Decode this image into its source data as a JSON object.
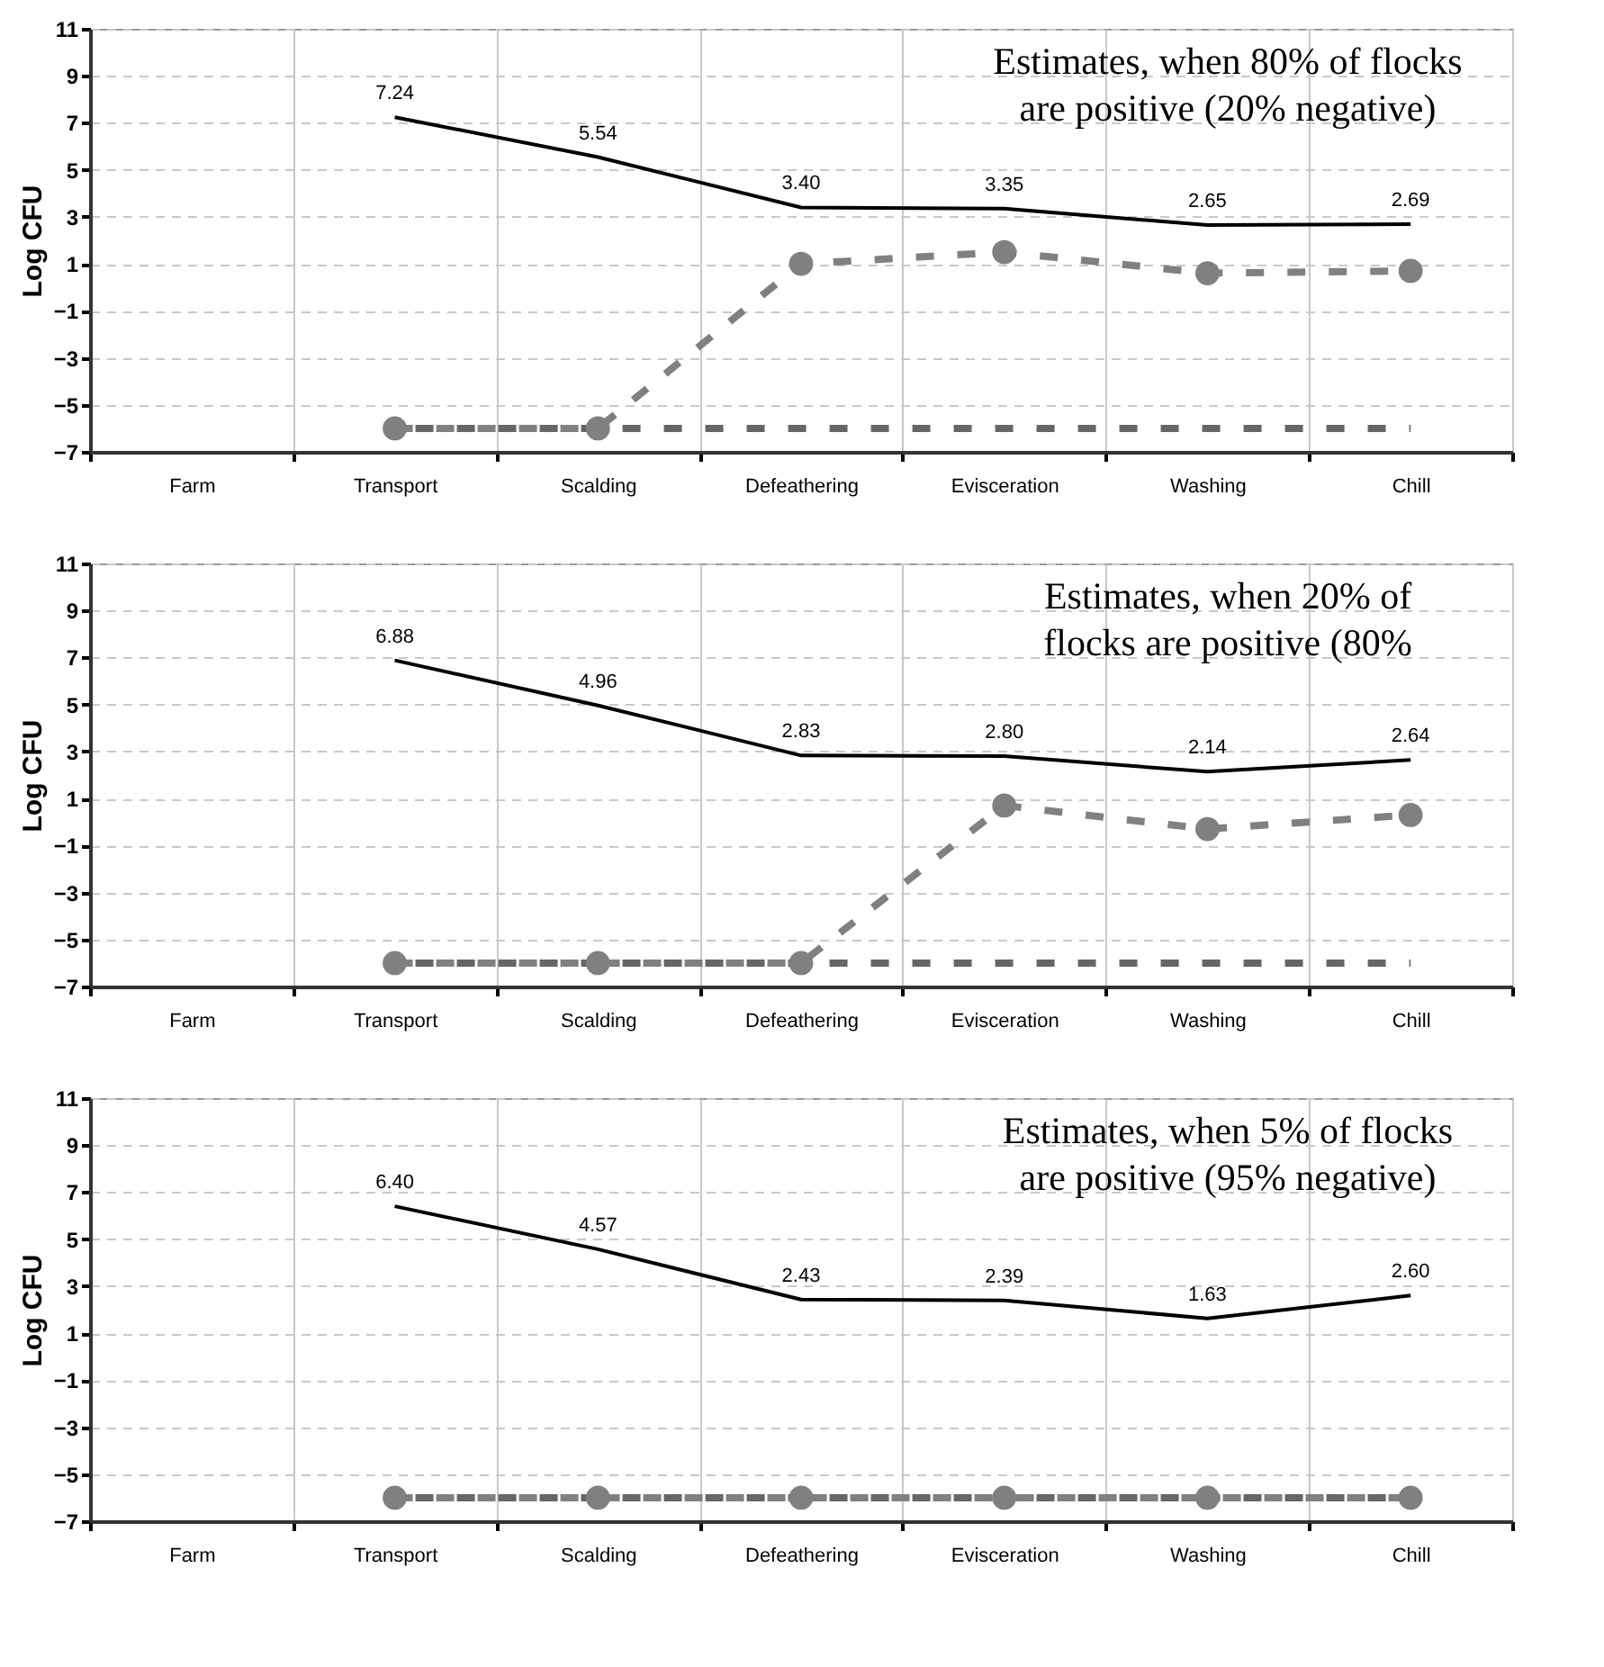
{
  "chart_data": [
    {
      "type": "line",
      "title": "Estimates, when 80% of flocks\nare positive (20% negative)",
      "ylabel": "Log CFU",
      "categories": [
        "Farm",
        "Transport",
        "Scalding",
        "Defeathering",
        "Evisceration",
        "Washing",
        "Chill"
      ],
      "ylim": [
        -7,
        11
      ],
      "yticks": [
        -7,
        -5,
        -3,
        -1,
        1,
        3,
        5,
        7,
        9,
        11
      ],
      "grid": true,
      "series": [
        {
          "color": "#000000",
          "line_style": "solid",
          "marker": "none",
          "values": [
            null,
            7.24,
            5.54,
            3.4,
            3.35,
            2.65,
            2.69
          ],
          "value_labels": [
            null,
            "7.24",
            "5.54",
            "3.40",
            "3.35",
            "2.65",
            "2.69"
          ]
        },
        {
          "color": "#666666",
          "line_style": "dashed",
          "marker": "none",
          "values": [
            null,
            -6,
            -6,
            -6,
            -6,
            -6,
            -6
          ]
        },
        {
          "color": "#808080",
          "line_style": "dashed",
          "marker": "circle",
          "values": [
            null,
            -6,
            -6,
            1.0,
            1.5,
            0.6,
            0.7
          ]
        }
      ]
    },
    {
      "type": "line",
      "title": "Estimates, when 20% of\nflocks are positive (80%",
      "ylabel": "Log CFU",
      "categories": [
        "Farm",
        "Transport",
        "Scalding",
        "Defeathering",
        "Evisceration",
        "Washing",
        "Chill"
      ],
      "ylim": [
        -7,
        11
      ],
      "yticks": [
        -7,
        -5,
        -3,
        -1,
        1,
        3,
        5,
        7,
        9,
        11
      ],
      "grid": true,
      "series": [
        {
          "color": "#000000",
          "line_style": "solid",
          "marker": "none",
          "values": [
            null,
            6.88,
            4.96,
            2.83,
            2.8,
            2.14,
            2.64
          ],
          "value_labels": [
            null,
            "6.88",
            "4.96",
            "2.83",
            "2.80",
            "2.14",
            "2.64"
          ]
        },
        {
          "color": "#666666",
          "line_style": "dashed",
          "marker": "none",
          "values": [
            null,
            -6,
            -6,
            -6,
            -6,
            -6,
            -6
          ]
        },
        {
          "color": "#808080",
          "line_style": "dashed",
          "marker": "circle",
          "values": [
            null,
            -6,
            -6,
            -6,
            0.7,
            -0.3,
            0.3
          ]
        }
      ]
    },
    {
      "type": "line",
      "title": "Estimates, when 5% of flocks\nare positive (95% negative)",
      "ylabel": "Log CFU",
      "categories": [
        "Farm",
        "Transport",
        "Scalding",
        "Defeathering",
        "Evisceration",
        "Washing",
        "Chill"
      ],
      "ylim": [
        -7,
        11
      ],
      "yticks": [
        -7,
        -5,
        -3,
        -1,
        1,
        3,
        5,
        7,
        9,
        11
      ],
      "grid": true,
      "series": [
        {
          "color": "#000000",
          "line_style": "solid",
          "marker": "none",
          "values": [
            null,
            6.4,
            4.57,
            2.43,
            2.39,
            1.63,
            2.6
          ],
          "value_labels": [
            null,
            "6.40",
            "4.57",
            "2.43",
            "2.39",
            "1.63",
            "2.60"
          ]
        },
        {
          "color": "#666666",
          "line_style": "dashed",
          "marker": "none",
          "values": [
            null,
            -6,
            -6,
            -6,
            -6,
            -6,
            -6
          ]
        },
        {
          "color": "#808080",
          "line_style": "dashed",
          "marker": "circle",
          "values": [
            null,
            -6,
            -6,
            -6,
            -6,
            -6,
            -6
          ]
        }
      ]
    }
  ]
}
